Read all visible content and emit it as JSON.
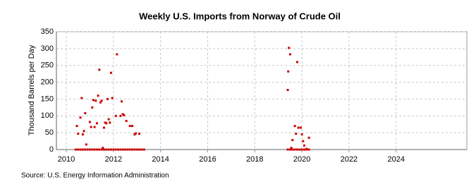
{
  "chart_data": {
    "type": "scatter",
    "title": "Weekly U.S. Imports from Norway of Crude Oil",
    "y_label": "Thousand Barrels per Day",
    "source": "Source: U.S. Energy Information Administration",
    "color": "#cc0000",
    "grid": true,
    "xlim": [
      2009.58,
      2027.0
    ],
    "ylim": [
      0,
      350
    ],
    "xticks": [
      2010,
      2012,
      2014,
      2016,
      2018,
      2020,
      2022,
      2024
    ],
    "yticks": [
      0,
      50,
      100,
      150,
      200,
      250,
      300,
      350
    ],
    "x": [
      2010.45,
      2010.5,
      2010.6,
      2010.65,
      2010.7,
      2010.75,
      2010.8,
      2010.85,
      2011.0,
      2011.05,
      2011.1,
      2011.15,
      2011.2,
      2011.25,
      2011.3,
      2011.35,
      2011.4,
      2011.45,
      2011.5,
      2011.55,
      2011.6,
      2011.65,
      2011.7,
      2011.75,
      2011.8,
      2011.85,
      2011.9,
      2011.95,
      2012.1,
      2012.15,
      2012.3,
      2012.35,
      2012.4,
      2012.45,
      2012.55,
      2012.7,
      2012.8,
      2012.9,
      2012.95,
      2013.1,
      2019.4,
      2019.42,
      2019.45,
      2019.5,
      2019.55,
      2019.6,
      2019.7,
      2019.75,
      2019.8,
      2019.85,
      2019.95,
      2020.0,
      2020.05,
      2020.1,
      2020.2,
      2020.3,
      2010.4,
      2010.5,
      2010.6,
      2010.7,
      2010.8,
      2010.9,
      2011.0,
      2011.1,
      2011.2,
      2011.3,
      2011.4,
      2011.5,
      2011.6,
      2011.7,
      2011.8,
      2011.9,
      2012.0,
      2012.1,
      2012.2,
      2012.3,
      2012.4,
      2012.5,
      2012.6,
      2012.7,
      2012.8,
      2012.9,
      2013.0,
      2013.1,
      2013.2,
      2013.3,
      2019.4,
      2019.5,
      2019.6,
      2019.7,
      2019.8,
      2019.9,
      2020.0,
      2020.1,
      2020.2,
      2020.3
    ],
    "values": [
      70,
      47,
      95,
      153,
      45,
      55,
      108,
      15,
      82,
      67,
      125,
      147,
      67,
      145,
      78,
      160,
      237,
      140,
      145,
      5,
      65,
      80,
      78,
      150,
      90,
      80,
      228,
      153,
      100,
      283,
      100,
      143,
      105,
      102,
      85,
      70,
      70,
      45,
      48,
      47,
      177,
      232,
      302,
      283,
      5,
      28,
      70,
      47,
      260,
      65,
      65,
      45,
      25,
      12,
      2,
      35,
      0,
      0,
      0,
      0,
      0,
      0,
      0,
      0,
      0,
      0,
      0,
      0,
      0,
      0,
      0,
      0,
      0,
      0,
      0,
      0,
      0,
      0,
      0,
      0,
      0,
      0,
      0,
      0,
      0,
      0,
      0,
      0,
      0,
      0,
      0,
      0,
      0,
      0,
      0,
      0
    ]
  }
}
